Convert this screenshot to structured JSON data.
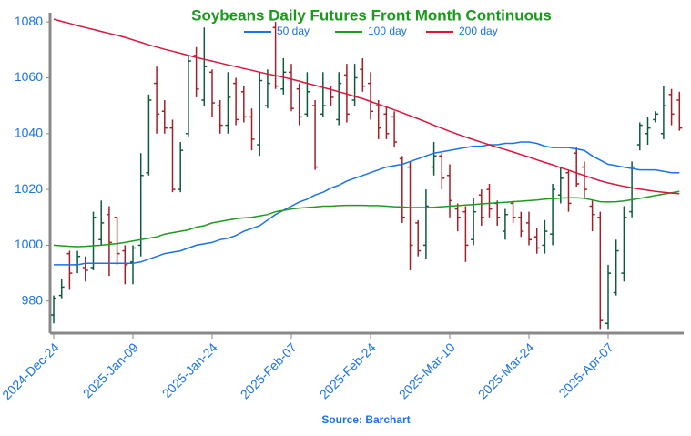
{
  "chart_data": {
    "type": "ohlc",
    "title": "Soybeans Daily Futures Front Month Continuous",
    "source": "Source: Barchart",
    "categories": [
      "2024-Dec-24",
      null,
      null,
      null,
      null,
      null,
      null,
      null,
      null,
      null,
      "2025-Jan-09",
      null,
      null,
      null,
      null,
      null,
      null,
      null,
      null,
      null,
      "2025-Jan-24",
      null,
      null,
      null,
      null,
      null,
      null,
      null,
      null,
      null,
      "2025-Feb-07",
      null,
      null,
      null,
      null,
      null,
      null,
      null,
      null,
      null,
      "2025-Feb-24",
      null,
      null,
      null,
      null,
      null,
      null,
      null,
      null,
      null,
      "2025-Mar-10",
      null,
      null,
      null,
      null,
      null,
      null,
      null,
      null,
      null,
      "2025-Mar-24",
      null,
      null,
      null,
      null,
      null,
      null,
      null,
      null,
      null,
      "2025-Apr-07",
      null,
      null,
      null,
      null,
      null,
      null,
      null,
      null,
      null
    ],
    "ohlc": {
      "open": [
        975,
        982,
        997,
        993,
        992,
        992,
        1002,
        1011,
        1010,
        998,
        994,
        1000,
        1026,
        1058,
        1048,
        1042,
        1020,
        1040,
        1068,
        1052,
        1062,
        1050,
        1043,
        1058,
        1055,
        1046,
        1036,
        1050,
        1078,
        1056,
        1062,
        1056,
        1047,
        1050,
        1047,
        1056,
        1045,
        1061,
        1052,
        1063,
        1058,
        1050,
        1047,
        1046,
        1031,
        1028,
        1008,
        1000,
        1028,
        1032,
        1025,
        1013,
        1012,
        1002,
        1018,
        1020,
        1015,
        1005,
        1015,
        1010,
        1008,
        1003,
        1000,
        1004,
        1018,
        1026,
        1033,
        1028,
        1014,
        1010,
        972,
        983,
        990,
        1012,
        1036,
        1040,
        1045,
        1040,
        1054,
        1052
      ],
      "high": [
        982,
        988,
        998,
        998,
        996,
        1012,
        1016,
        1014,
        1010,
        1000,
        1000,
        1033,
        1054,
        1064,
        1052,
        1045,
        1037,
        1068,
        1071,
        1078,
        1063,
        1052,
        1062,
        1060,
        1057,
        1049,
        1062,
        1063,
        1080,
        1067,
        1065,
        1058,
        1062,
        1052,
        1062,
        1057,
        1062,
        1065,
        1065,
        1067,
        1062,
        1052,
        1050,
        1048,
        1032,
        1030,
        1009,
        1020,
        1037,
        1033,
        1029,
        1015,
        1014,
        1017,
        1020,
        1022,
        1016,
        1013,
        1016,
        1012,
        1012,
        1006,
        1009,
        1022,
        1028,
        1027,
        1035,
        1030,
        1016,
        1012,
        993,
        1002,
        1014,
        1030,
        1044,
        1046,
        1048,
        1057,
        1056,
        1055
      ],
      "low": [
        972,
        981,
        984,
        990,
        987,
        991,
        1000,
        989,
        993,
        986,
        986,
        996,
        1025,
        1040,
        1040,
        1019,
        1019,
        1039,
        1053,
        1050,
        1046,
        1040,
        1040,
        1043,
        1044,
        1034,
        1032,
        1049,
        1056,
        1054,
        1048,
        1043,
        1046,
        1027,
        1046,
        1050,
        1043,
        1044,
        1050,
        1055,
        1045,
        1038,
        1038,
        1035,
        1008,
        991,
        996,
        995,
        1025,
        1020,
        1010,
        1005,
        994,
        1000,
        1007,
        1010,
        1007,
        1002,
        1008,
        1003,
        1000,
        997,
        997,
        1000,
        1015,
        1012,
        1021,
        1017,
        1005,
        970,
        970,
        982,
        987,
        1010,
        1034,
        1036,
        1044,
        1038,
        1043,
        1041
      ],
      "close": [
        981,
        985,
        990,
        996,
        991,
        1010,
        1008,
        1001,
        997,
        993,
        999,
        1025,
        1052,
        1047,
        1042,
        1020,
        1034,
        1066,
        1056,
        1064,
        1051,
        1043,
        1053,
        1045,
        1046,
        1038,
        1059,
        1058,
        1057,
        1062,
        1049,
        1046,
        1055,
        1028,
        1050,
        1053,
        1058,
        1047,
        1060,
        1057,
        1048,
        1042,
        1040,
        1037,
        1010,
        1000,
        998,
        1014,
        1032,
        1024,
        1016,
        1010,
        1000,
        1012,
        1010,
        1013,
        1010,
        1011,
        1010,
        1005,
        1002,
        999,
        1005,
        1020,
        1024,
        1015,
        1022,
        1020,
        1011,
        973,
        990,
        998,
        1010,
        1028,
        1043,
        1042,
        1047,
        1050,
        1047,
        1042
      ]
    },
    "up_color": "#0f5a3a",
    "down_color": "#a0202a",
    "series": [
      {
        "name": "50 day",
        "color": "#1a73e8",
        "values": [
          993,
          993,
          993,
          993,
          993.5,
          993.5,
          993.5,
          993.5,
          993.5,
          993.5,
          993.5,
          994,
          995,
          996,
          997,
          997.5,
          998,
          999,
          1000,
          1000.5,
          1001,
          1002,
          1002.5,
          1003.5,
          1005,
          1006,
          1007,
          1009,
          1011,
          1012.5,
          1014,
          1015.5,
          1016.5,
          1018,
          1019,
          1020.5,
          1021.5,
          1023,
          1024,
          1025,
          1026,
          1027,
          1028,
          1028.5,
          1029,
          1030,
          1031,
          1032,
          1033,
          1033.5,
          1034,
          1034.5,
          1035,
          1035.5,
          1035.5,
          1036,
          1036,
          1036.5,
          1036.5,
          1037,
          1037,
          1036.5,
          1035.5,
          1035,
          1035,
          1035,
          1034.5,
          1034,
          1032,
          1030.5,
          1029,
          1028.5,
          1028,
          1027.5,
          1027,
          1027,
          1027,
          1026.5,
          1026,
          1026
        ]
      },
      {
        "name": "100 day",
        "color": "#1f9a1f",
        "values": [
          1000,
          999.8,
          999.6,
          999.5,
          999.6,
          999.8,
          1000,
          1000.3,
          1000.6,
          1001,
          1001.5,
          1002,
          1002.5,
          1003,
          1004,
          1004.5,
          1005,
          1005.5,
          1006.5,
          1007,
          1008,
          1008.5,
          1009,
          1009.5,
          1009.8,
          1010,
          1010.5,
          1011,
          1012,
          1012.5,
          1013,
          1013.3,
          1013.5,
          1013.7,
          1014,
          1014,
          1014.2,
          1014.3,
          1014.3,
          1014.3,
          1014.2,
          1014.2,
          1014,
          1013.8,
          1013.7,
          1013.5,
          1013.5,
          1013.5,
          1013.6,
          1013.8,
          1014,
          1014.2,
          1014.4,
          1014.6,
          1014.8,
          1015,
          1015.2,
          1015.4,
          1015.6,
          1015.8,
          1016,
          1016.2,
          1016.5,
          1016.7,
          1016.9,
          1017,
          1017,
          1016.8,
          1016.2,
          1015.6,
          1015.5,
          1015.6,
          1015.9,
          1016.3,
          1016.8,
          1017.3,
          1017.8,
          1018.3,
          1018.8,
          1019.3
        ]
      },
      {
        "name": "200 day",
        "color": "#dc143c",
        "values": [
          1081,
          1080.2,
          1079.5,
          1078.7,
          1078,
          1077.3,
          1076.6,
          1075.9,
          1075.2,
          1074.5,
          1073.6,
          1072.7,
          1071.8,
          1071,
          1070.2,
          1069.5,
          1068.8,
          1068,
          1067.3,
          1066.6,
          1066,
          1065.3,
          1064.6,
          1064,
          1063.3,
          1062.7,
          1062,
          1061.4,
          1060.8,
          1060.2,
          1059.5,
          1058.8,
          1058,
          1057.3,
          1056.5,
          1055.8,
          1055,
          1054.2,
          1053.3,
          1052.5,
          1051.5,
          1050.5,
          1049.5,
          1048.5,
          1047.5,
          1046.4,
          1045.3,
          1044.2,
          1043,
          1041.9,
          1040.8,
          1039.8,
          1038.8,
          1037.8,
          1036.9,
          1036,
          1035.1,
          1034.3,
          1033.4,
          1032.5,
          1031.6,
          1030.6,
          1029.7,
          1028.8,
          1027.8,
          1026.9,
          1025.9,
          1025,
          1024,
          1023.1,
          1022.3,
          1021.7,
          1021.1,
          1020.6,
          1020.1,
          1019.7,
          1019.3,
          1019,
          1018.7,
          1018.5
        ]
      }
    ],
    "ylim": [
      968.5,
      1082
    ],
    "yticks": [
      980,
      1000,
      1020,
      1040,
      1060,
      1080
    ],
    "grid": false,
    "legend": "top"
  }
}
